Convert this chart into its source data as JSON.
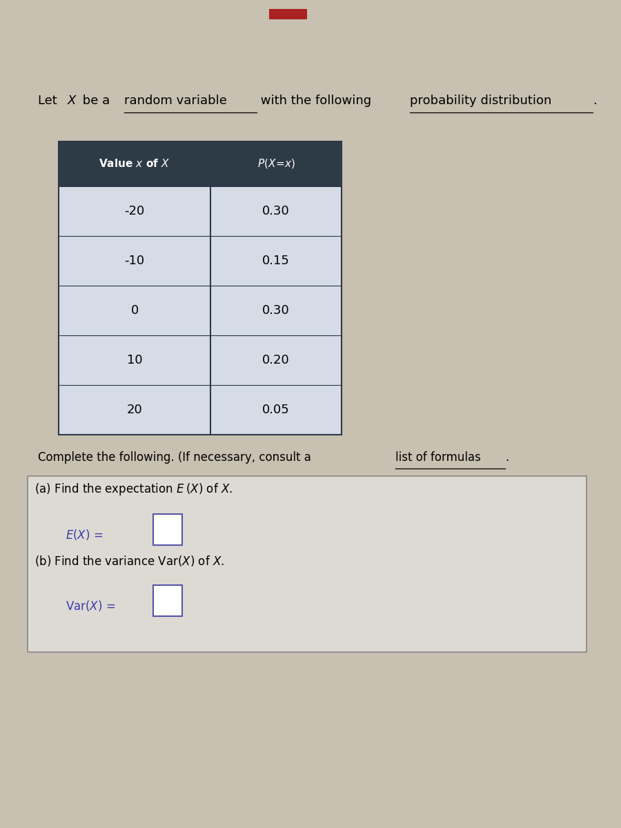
{
  "bg_color": "#c8c0b0",
  "table_header_bg": "#2d3b47",
  "table_header_color": "#ffffff",
  "table_row_bg": "#d6dce6",
  "table_border_color": "#2d3748",
  "table_values": [
    "-20",
    "-10",
    "0",
    "10",
    "20"
  ],
  "table_probs": [
    "0.30",
    "0.15",
    "0.30",
    "0.20",
    "0.05"
  ],
  "answer_box_bg": "#dddad4",
  "answer_box_border": "#888888",
  "input_box_border": "#5555aa",
  "eq_text_color": "#3a3aaa",
  "red_rect_color": "#aa2222"
}
